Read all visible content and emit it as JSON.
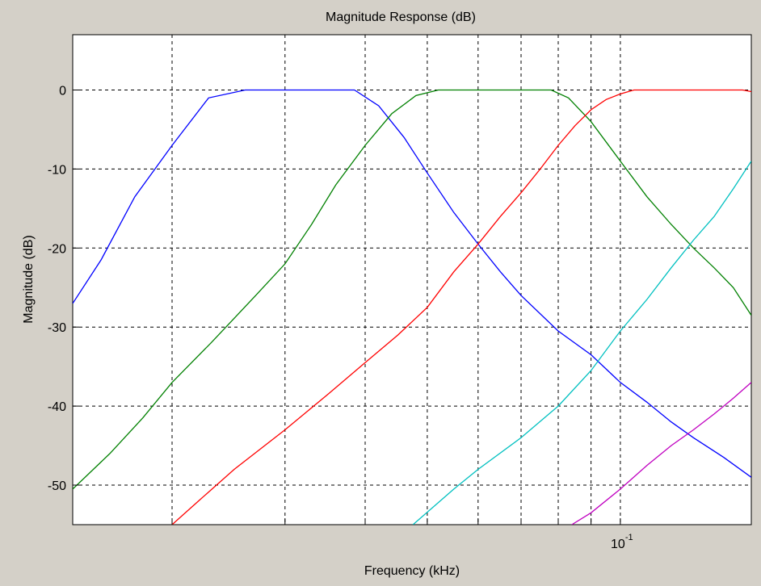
{
  "chart_data": {
    "type": "line",
    "title": "Magnitude Response (dB)",
    "xlabel": "Frequency (kHz)",
    "ylabel": "Magnitude (dB)",
    "x_scale": "log",
    "xlim": [
      0.014,
      0.16
    ],
    "ylim": [
      -55,
      7
    ],
    "grid": true,
    "legend": "none",
    "y_ticks": [
      0,
      -10,
      -20,
      -30,
      -40,
      -50
    ],
    "y_tick_labels": [
      "0",
      "-10",
      "-20",
      "-30",
      "-40",
      "-50"
    ],
    "x_grid": [
      0.02,
      0.03,
      0.04,
      0.05,
      0.06,
      0.07,
      0.08,
      0.09,
      0.1
    ],
    "x_tick_labels": [
      {
        "x": 0.1,
        "base": "10",
        "exp": "-1"
      }
    ],
    "series": [
      {
        "color": "#0000ff",
        "points": [
          [
            0.014,
            -27
          ],
          [
            0.0155,
            -21.5
          ],
          [
            0.0175,
            -13.5
          ],
          [
            0.02,
            -7
          ],
          [
            0.0228,
            -1
          ],
          [
            0.026,
            0
          ],
          [
            0.0385,
            0
          ],
          [
            0.042,
            -2
          ],
          [
            0.046,
            -6
          ],
          [
            0.05,
            -10.5
          ],
          [
            0.055,
            -15.5
          ],
          [
            0.06,
            -19.5
          ],
          [
            0.065,
            -23
          ],
          [
            0.07,
            -26
          ],
          [
            0.08,
            -30.5
          ],
          [
            0.09,
            -33.5
          ],
          [
            0.1,
            -37
          ],
          [
            0.11,
            -39.5
          ],
          [
            0.12,
            -42
          ],
          [
            0.13,
            -44
          ],
          [
            0.145,
            -46.5
          ],
          [
            0.16,
            -49
          ]
        ]
      },
      {
        "color": "#008000",
        "points": [
          [
            0.014,
            -50.5
          ],
          [
            0.016,
            -46
          ],
          [
            0.018,
            -41.5
          ],
          [
            0.02,
            -37
          ],
          [
            0.023,
            -32
          ],
          [
            0.027,
            -26
          ],
          [
            0.03,
            -22
          ],
          [
            0.033,
            -17
          ],
          [
            0.036,
            -12
          ],
          [
            0.04,
            -7
          ],
          [
            0.044,
            -3
          ],
          [
            0.048,
            -0.7
          ],
          [
            0.052,
            0
          ],
          [
            0.078,
            0
          ],
          [
            0.083,
            -1
          ],
          [
            0.09,
            -4
          ],
          [
            0.1,
            -9
          ],
          [
            0.11,
            -13.5
          ],
          [
            0.12,
            -17
          ],
          [
            0.13,
            -20
          ],
          [
            0.14,
            -22.5
          ],
          [
            0.15,
            -25
          ],
          [
            0.16,
            -28.5
          ]
        ]
      },
      {
        "color": "#ff0000",
        "points": [
          [
            0.02,
            -55
          ],
          [
            0.022,
            -52
          ],
          [
            0.025,
            -48
          ],
          [
            0.03,
            -43
          ],
          [
            0.035,
            -38.5
          ],
          [
            0.04,
            -34.5
          ],
          [
            0.045,
            -31
          ],
          [
            0.05,
            -27.5
          ],
          [
            0.055,
            -23
          ],
          [
            0.06,
            -19.5
          ],
          [
            0.065,
            -16
          ],
          [
            0.07,
            -13
          ],
          [
            0.075,
            -10
          ],
          [
            0.08,
            -7
          ],
          [
            0.085,
            -4.5
          ],
          [
            0.09,
            -2.5
          ],
          [
            0.095,
            -1.2
          ],
          [
            0.1,
            -0.5
          ],
          [
            0.105,
            0
          ],
          [
            0.155,
            0
          ],
          [
            0.16,
            -0.2
          ]
        ]
      },
      {
        "color": "#00c0c0",
        "points": [
          [
            0.0475,
            -55
          ],
          [
            0.055,
            -50.5
          ],
          [
            0.06,
            -48
          ],
          [
            0.07,
            -44
          ],
          [
            0.08,
            -40
          ],
          [
            0.09,
            -35.5
          ],
          [
            0.1,
            -30.5
          ],
          [
            0.11,
            -26.5
          ],
          [
            0.12,
            -22.5
          ],
          [
            0.13,
            -19
          ],
          [
            0.14,
            -16
          ],
          [
            0.15,
            -12.5
          ],
          [
            0.16,
            -9
          ]
        ]
      },
      {
        "color": "#c000c0",
        "points": [
          [
            0.084,
            -55
          ],
          [
            0.09,
            -53.5
          ],
          [
            0.1,
            -50.5
          ],
          [
            0.11,
            -47.5
          ],
          [
            0.12,
            -45
          ],
          [
            0.13,
            -43
          ],
          [
            0.14,
            -41
          ],
          [
            0.15,
            -39
          ],
          [
            0.16,
            -37
          ]
        ]
      }
    ]
  }
}
